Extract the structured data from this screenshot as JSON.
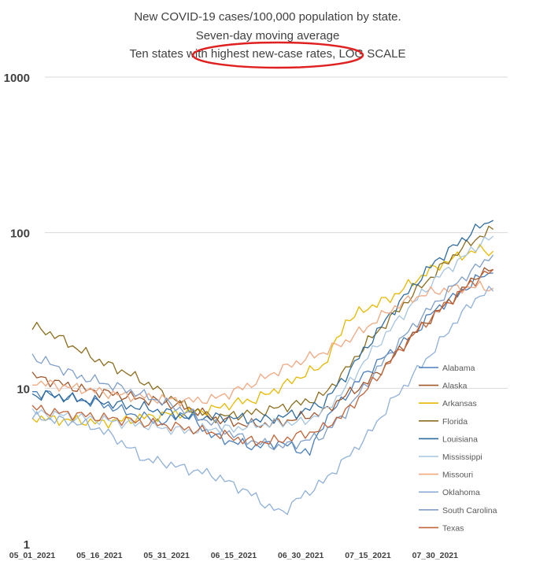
{
  "chart_data": {
    "type": "line",
    "title": [
      "New COVID-19 cases/100,000 population by state.",
      "Seven-day moving average",
      "Ten states with highest new-case rates, LOG SCALE"
    ],
    "xlabel": "",
    "ylabel": "",
    "yscale": "log",
    "ylim": [
      1,
      1000
    ],
    "yticks": [
      "1",
      "10",
      "100",
      "1000"
    ],
    "xticks": [
      "05_01_2021",
      "05_16_2021",
      "05_31_2021",
      "06_15_2021",
      "06_30_2021",
      "07_15_2021",
      "07_30_2021"
    ],
    "x_range_days": [
      0,
      103
    ],
    "grid": true,
    "legend_position": "right",
    "annotation": "red ellipse around 'highest new-case rates'",
    "series": [
      {
        "name": "Alabama",
        "color": "#4a7ebb",
        "points": [
          [
            0,
            9.5
          ],
          [
            5,
            9
          ],
          [
            10,
            8.5
          ],
          [
            15,
            8
          ],
          [
            20,
            7.2
          ],
          [
            25,
            6.5
          ],
          [
            30,
            6
          ],
          [
            33,
            7
          ],
          [
            36,
            6.3
          ],
          [
            40,
            5
          ],
          [
            45,
            4.5
          ],
          [
            50,
            4.2
          ],
          [
            55,
            4.5
          ],
          [
            60,
            4
          ],
          [
            62,
            3.8
          ],
          [
            65,
            6
          ],
          [
            70,
            9
          ],
          [
            75,
            13
          ],
          [
            80,
            17
          ],
          [
            85,
            22
          ],
          [
            90,
            32
          ],
          [
            95,
            40
          ],
          [
            100,
            52
          ],
          [
            103,
            55
          ]
        ]
      },
      {
        "name": "Alaska",
        "color": "#a0562b",
        "points": [
          [
            0,
            12
          ],
          [
            5,
            11
          ],
          [
            10,
            10
          ],
          [
            15,
            9.5
          ],
          [
            20,
            9
          ],
          [
            25,
            8.5
          ],
          [
            30,
            8
          ],
          [
            35,
            7.5
          ],
          [
            40,
            6.5
          ],
          [
            45,
            6
          ],
          [
            50,
            5.8
          ],
          [
            55,
            6
          ],
          [
            60,
            6.5
          ],
          [
            65,
            7
          ],
          [
            70,
            9
          ],
          [
            75,
            11
          ],
          [
            80,
            15
          ],
          [
            85,
            22
          ],
          [
            90,
            30
          ],
          [
            95,
            40
          ],
          [
            100,
            55
          ],
          [
            103,
            58
          ]
        ]
      },
      {
        "name": "Arkansas",
        "color": "#e6b800",
        "points": [
          [
            0,
            6.5
          ],
          [
            5,
            6.3
          ],
          [
            10,
            6.2
          ],
          [
            15,
            6
          ],
          [
            20,
            6.2
          ],
          [
            25,
            6.5
          ],
          [
            30,
            6.8
          ],
          [
            35,
            7
          ],
          [
            40,
            7.3
          ],
          [
            45,
            8
          ],
          [
            50,
            8.5
          ],
          [
            55,
            10
          ],
          [
            60,
            12
          ],
          [
            65,
            14
          ],
          [
            68,
            20
          ],
          [
            70,
            27
          ],
          [
            75,
            33
          ],
          [
            80,
            38
          ],
          [
            85,
            48
          ],
          [
            90,
            60
          ],
          [
            95,
            70
          ],
          [
            100,
            78
          ],
          [
            103,
            76
          ]
        ]
      },
      {
        "name": "Florida",
        "color": "#8c6d1f",
        "points": [
          [
            0,
            25
          ],
          [
            5,
            22
          ],
          [
            10,
            18
          ],
          [
            15,
            15
          ],
          [
            20,
            13
          ],
          [
            25,
            11
          ],
          [
            30,
            9
          ],
          [
            35,
            7.5
          ],
          [
            40,
            6.5
          ],
          [
            45,
            6.7
          ],
          [
            50,
            7
          ],
          [
            55,
            7.5
          ],
          [
            60,
            8
          ],
          [
            65,
            9
          ],
          [
            70,
            13
          ],
          [
            75,
            20
          ],
          [
            80,
            28
          ],
          [
            85,
            40
          ],
          [
            90,
            55
          ],
          [
            95,
            75
          ],
          [
            100,
            95
          ],
          [
            103,
            105
          ]
        ]
      },
      {
        "name": "Louisiana",
        "color": "#2e6b9e",
        "points": [
          [
            0,
            9
          ],
          [
            5,
            9
          ],
          [
            10,
            8.5
          ],
          [
            15,
            8.2
          ],
          [
            20,
            7.8
          ],
          [
            25,
            7.5
          ],
          [
            30,
            7
          ],
          [
            35,
            6.5
          ],
          [
            40,
            6.5
          ],
          [
            45,
            6.5
          ],
          [
            50,
            6.2
          ],
          [
            55,
            6.5
          ],
          [
            60,
            7
          ],
          [
            65,
            8
          ],
          [
            70,
            12
          ],
          [
            75,
            19
          ],
          [
            80,
            30
          ],
          [
            85,
            45
          ],
          [
            90,
            65
          ],
          [
            95,
            85
          ],
          [
            100,
            110
          ],
          [
            103,
            120
          ]
        ]
      },
      {
        "name": "Mississippi",
        "color": "#a6c5e0",
        "points": [
          [
            0,
            7
          ],
          [
            5,
            6.8
          ],
          [
            10,
            6.5
          ],
          [
            15,
            6.3
          ],
          [
            20,
            6
          ],
          [
            25,
            5.8
          ],
          [
            30,
            5.5
          ],
          [
            35,
            5.3
          ],
          [
            40,
            5.5
          ],
          [
            45,
            5.5
          ],
          [
            50,
            5.8
          ],
          [
            55,
            6
          ],
          [
            60,
            6
          ],
          [
            65,
            7
          ],
          [
            70,
            10
          ],
          [
            75,
            16
          ],
          [
            80,
            24
          ],
          [
            85,
            35
          ],
          [
            90,
            50
          ],
          [
            95,
            65
          ],
          [
            100,
            85
          ],
          [
            103,
            95
          ]
        ]
      },
      {
        "name": "Missouri",
        "color": "#f0a880",
        "points": [
          [
            0,
            11
          ],
          [
            5,
            10.5
          ],
          [
            10,
            10
          ],
          [
            15,
            9.5
          ],
          [
            20,
            9
          ],
          [
            25,
            8.8
          ],
          [
            30,
            8.5
          ],
          [
            35,
            8.3
          ],
          [
            40,
            8.5
          ],
          [
            45,
            9.5
          ],
          [
            50,
            11
          ],
          [
            55,
            13
          ],
          [
            60,
            15
          ],
          [
            65,
            17
          ],
          [
            70,
            20
          ],
          [
            75,
            25
          ],
          [
            80,
            32
          ],
          [
            85,
            38
          ],
          [
            90,
            42
          ],
          [
            95,
            44
          ],
          [
            100,
            45
          ],
          [
            103,
            44
          ]
        ]
      },
      {
        "name": "Oklahoma",
        "color": "#8fb0d8",
        "points": [
          [
            0,
            6.5
          ],
          [
            5,
            6.3
          ],
          [
            10,
            6
          ],
          [
            15,
            5.5
          ],
          [
            20,
            4.5
          ],
          [
            25,
            3.5
          ],
          [
            30,
            3.3
          ],
          [
            35,
            3
          ],
          [
            40,
            2.8
          ],
          [
            45,
            2.4
          ],
          [
            50,
            2
          ],
          [
            53,
            1.7
          ],
          [
            56,
            1.6
          ],
          [
            60,
            2
          ],
          [
            65,
            2.5
          ],
          [
            70,
            3.5
          ],
          [
            75,
            5
          ],
          [
            80,
            8
          ],
          [
            85,
            12
          ],
          [
            90,
            18
          ],
          [
            95,
            28
          ],
          [
            100,
            40
          ],
          [
            103,
            42
          ]
        ]
      },
      {
        "name": "South Carolina",
        "color": "#7f9fc9",
        "points": [
          [
            0,
            16
          ],
          [
            5,
            14
          ],
          [
            10,
            12
          ],
          [
            15,
            11
          ],
          [
            20,
            10
          ],
          [
            25,
            9
          ],
          [
            30,
            8
          ],
          [
            35,
            7
          ],
          [
            40,
            6
          ],
          [
            45,
            5
          ],
          [
            50,
            4.5
          ],
          [
            55,
            4.2
          ],
          [
            60,
            4.5
          ],
          [
            65,
            5
          ],
          [
            70,
            7
          ],
          [
            75,
            11
          ],
          [
            80,
            17
          ],
          [
            85,
            25
          ],
          [
            90,
            35
          ],
          [
            95,
            48
          ],
          [
            100,
            62
          ],
          [
            103,
            72
          ]
        ]
      },
      {
        "name": "Texas",
        "color": "#c0643a",
        "points": [
          [
            0,
            7.5
          ],
          [
            5,
            7
          ],
          [
            10,
            6.8
          ],
          [
            15,
            6.5
          ],
          [
            20,
            6.3
          ],
          [
            25,
            6
          ],
          [
            30,
            5.8
          ],
          [
            35,
            5.5
          ],
          [
            40,
            5.2
          ],
          [
            45,
            4.8
          ],
          [
            50,
            4.5
          ],
          [
            55,
            4.6
          ],
          [
            60,
            5
          ],
          [
            65,
            5.5
          ],
          [
            70,
            7
          ],
          [
            75,
            10
          ],
          [
            80,
            15
          ],
          [
            85,
            22
          ],
          [
            90,
            30
          ],
          [
            95,
            40
          ],
          [
            100,
            52
          ],
          [
            103,
            58
          ]
        ]
      }
    ]
  }
}
